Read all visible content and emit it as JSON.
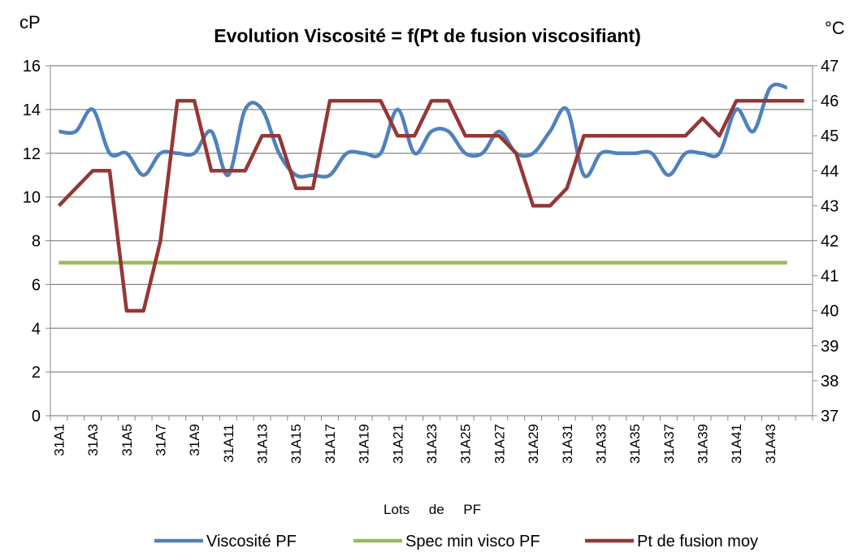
{
  "chart_data": {
    "type": "line",
    "title": "Evolution Viscosité = f(Pt de fusion viscosifiant)",
    "ylabel": "cP",
    "y2label": "°C",
    "xlabel": "Lots     de     PF",
    "categories": [
      "31A1",
      null,
      "31A3",
      null,
      "31A5",
      null,
      "31A7",
      null,
      "31A9",
      null,
      "31A11",
      null,
      "31A13",
      null,
      "31A15",
      null,
      "31A17",
      null,
      "31A19",
      null,
      "31A21",
      null,
      "31A23",
      null,
      "31A25",
      null,
      "31A27",
      null,
      "31A29",
      null,
      "31A31",
      null,
      "31A33",
      null,
      "31A35",
      null,
      "31A37",
      null,
      "31A39",
      null,
      "31A41",
      null,
      "31A43",
      null,
      null
    ],
    "series": [
      {
        "name": "Viscosité PF",
        "color": "#4f81bd",
        "smooth": true,
        "values": [
          13,
          13,
          14,
          12,
          12,
          11,
          12,
          12,
          12,
          13,
          11,
          14,
          14,
          12,
          11,
          11,
          11,
          12,
          12,
          12,
          14,
          12,
          13,
          13,
          12,
          12,
          13,
          12,
          12,
          13,
          14,
          11,
          12,
          12,
          12,
          12,
          11,
          12,
          12,
          12,
          14,
          13,
          15,
          15,
          null
        ]
      },
      {
        "name": "Spec min visco PF",
        "color": "#9bbb59",
        "values": [
          7,
          7,
          7,
          7,
          7,
          7,
          7,
          7,
          7,
          7,
          7,
          7,
          7,
          7,
          7,
          7,
          7,
          7,
          7,
          7,
          7,
          7,
          7,
          7,
          7,
          7,
          7,
          7,
          7,
          7,
          7,
          7,
          7,
          7,
          7,
          7,
          7,
          7,
          7,
          7,
          7,
          7,
          7,
          7,
          null
        ]
      },
      {
        "name": "Pt de fusion moy",
        "color": "#953735",
        "axis": "y2",
        "values": [
          43,
          43.5,
          44,
          44,
          40,
          40,
          42,
          46,
          46,
          44,
          44,
          44,
          45,
          45,
          43.5,
          43.5,
          46,
          46,
          46,
          46,
          45,
          45,
          46,
          46,
          45,
          45,
          45,
          44.5,
          43,
          43,
          43.5,
          45,
          45,
          45,
          45,
          45,
          45,
          45,
          45.5,
          45,
          46,
          46,
          46,
          46,
          46
        ]
      }
    ],
    "ylim": [
      0,
      16
    ],
    "yticks": [
      0,
      2,
      4,
      6,
      8,
      10,
      12,
      14,
      16
    ],
    "y2lim": [
      37,
      47
    ],
    "y2ticks": [
      37,
      38,
      39,
      40,
      41,
      42,
      43,
      44,
      45,
      46,
      47
    ],
    "grid": true
  }
}
